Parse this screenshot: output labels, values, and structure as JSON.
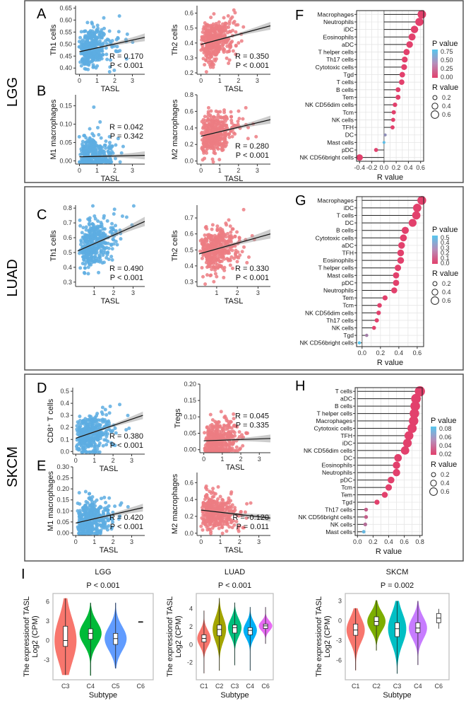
{
  "side_labels": [
    "LGG",
    "LUAD",
    "SKCM"
  ],
  "colors": {
    "blue_points": "#5DADE2",
    "red_points": "#EC7C82",
    "p_low": "#E2406C",
    "p_high": "#56C6EE",
    "label_pink": "#E8437A",
    "label_blue": "#3B3FB0"
  },
  "chart_data": [
    {
      "id": "A",
      "type": "scatter",
      "panel_label": "A",
      "xlabel": "TASL",
      "ylabel": "Th1 cells",
      "color": "#5DADE2",
      "xticks": [
        0,
        1,
        2,
        3
      ],
      "xlim": [
        -0.1,
        3.7
      ],
      "yticks": [
        0.4,
        0.45,
        0.5,
        0.55,
        0.6,
        0.65
      ],
      "ytick_labels": [
        "0.40",
        "0.45",
        "0.50",
        "0.55",
        "0.60",
        "0.65"
      ],
      "ylim": [
        0.38,
        0.66
      ],
      "fit_line": [
        [
          0,
          0.468
        ],
        [
          3.7,
          0.528
        ]
      ],
      "R": "R = 0.170",
      "P": "P < 0.001"
    },
    {
      "id": "A2",
      "type": "scatter",
      "panel_label": "",
      "xlabel": "TASL",
      "ylabel": "Th2 cells",
      "color": "#EC7C82",
      "xticks": [
        0,
        1,
        2,
        3
      ],
      "xlim": [
        -0.1,
        3.7
      ],
      "yticks": [
        0.2,
        0.3,
        0.4,
        0.5,
        0.6
      ],
      "ytick_labels": [
        "0.2",
        "0.3",
        "0.4",
        "0.5",
        "0.6"
      ],
      "ylim": [
        0.2,
        0.65
      ],
      "fit_line": [
        [
          0,
          0.39
        ],
        [
          3.7,
          0.515
        ]
      ],
      "R": "R = 0.350",
      "P": "P < 0.001"
    },
    {
      "id": "B",
      "type": "scatter",
      "panel_label": "B",
      "xlabel": "TASL",
      "ylabel": "M1 macrophages",
      "color": "#5DADE2",
      "xticks": [
        0,
        1,
        2,
        3
      ],
      "xlim": [
        -0.1,
        3.7
      ],
      "yticks": [
        0,
        0.05,
        0.1,
        0.15
      ],
      "ytick_labels": [
        "0.00",
        "0.05",
        "0.10",
        "0.15"
      ],
      "ylim": [
        -0.005,
        0.18
      ],
      "fit_line": [
        [
          0,
          0.011
        ],
        [
          3.7,
          0.015
        ]
      ],
      "R": "R = 0.042",
      "P": "P = 0.342"
    },
    {
      "id": "B2",
      "type": "scatter",
      "panel_label": "",
      "xlabel": "TASL",
      "ylabel": "M2 macrophages",
      "color": "#EC7C82",
      "xticks": [
        0,
        1,
        2,
        3
      ],
      "xlim": [
        -0.1,
        3.7
      ],
      "yticks": [
        0,
        0.2,
        0.4,
        0.6,
        0.8
      ],
      "ytick_labels": [
        "0.0",
        "0.2",
        "0.4",
        "0.6",
        "0.8"
      ],
      "ylim": [
        -0.02,
        0.8
      ],
      "fit_line": [
        [
          0,
          0.3
        ],
        [
          3.7,
          0.5
        ]
      ],
      "R": "R = 0.280",
      "P": "P < 0.001"
    },
    {
      "id": "C",
      "type": "scatter",
      "panel_label": "C",
      "xlabel": "TASL",
      "ylabel": "Th1 cells",
      "color": "#5DADE2",
      "xticks": [
        1,
        2,
        3
      ],
      "xlim": [
        0.15,
        3.6
      ],
      "yticks": [
        0.3,
        0.4,
        0.5,
        0.6,
        0.7,
        0.8
      ],
      "ytick_labels": [
        "0.3",
        "0.4",
        "0.5",
        "0.6",
        "0.7",
        "0.8"
      ],
      "ylim": [
        0.28,
        0.82
      ],
      "fit_line": [
        [
          0.15,
          0.51
        ],
        [
          3.6,
          0.71
        ]
      ],
      "R": "R = 0.490",
      "P": "P < 0.001"
    },
    {
      "id": "C2",
      "type": "scatter",
      "panel_label": "",
      "xlabel": "TASL",
      "ylabel": "Th2 cells",
      "color": "#EC7C82",
      "xticks": [
        1,
        2,
        3
      ],
      "xlim": [
        0.15,
        3.6
      ],
      "yticks": [
        0.3,
        0.4,
        0.5,
        0.6,
        0.7
      ],
      "ytick_labels": [
        "0.3",
        "0.4",
        "0.5",
        "0.6",
        "0.7"
      ],
      "ylim": [
        0.28,
        0.78
      ],
      "fit_line": [
        [
          0.15,
          0.475
        ],
        [
          3.6,
          0.6
        ]
      ],
      "R": "R = 0.330",
      "P": "P < 0.001"
    },
    {
      "id": "D",
      "type": "scatter",
      "panel_label": "D",
      "xlabel": "TASL",
      "ylabel": "CD8⁺ T cells",
      "color": "#5DADE2",
      "xticks": [
        0,
        1,
        2,
        3
      ],
      "xlim": [
        -0.05,
        3.7
      ],
      "yticks": [
        0,
        0.1,
        0.2,
        0.3,
        0.4,
        0.5
      ],
      "ytick_labels": [
        "0.0",
        "0.1",
        "0.2",
        "0.3",
        "0.4",
        "0.5"
      ],
      "ylim": [
        -0.01,
        0.53
      ],
      "fit_line": [
        [
          0,
          0.11
        ],
        [
          3.6,
          0.3
        ]
      ],
      "R": "R = 0.380",
      "P": "P < 0.001"
    },
    {
      "id": "D2",
      "type": "scatter",
      "panel_label": "",
      "xlabel": "TASL",
      "ylabel": "Tregs",
      "color": "#EC7C82",
      "xticks": [
        0,
        1,
        2,
        3
      ],
      "xlim": [
        -0.1,
        3.6
      ],
      "yticks": [
        0,
        0.05,
        0.1,
        0.15,
        0.2
      ],
      "ytick_labels": [
        "0.00",
        "0.05",
        "0.10",
        "0.15",
        "0.20"
      ],
      "ylim": [
        -0.005,
        0.2
      ],
      "fit_line": [
        [
          0,
          0.027
        ],
        [
          3.6,
          0.034
        ]
      ],
      "R": "R = 0.045",
      "P": "P = 0.335"
    },
    {
      "id": "E",
      "type": "scatter",
      "panel_label": "E",
      "xlabel": "TASL",
      "ylabel": "M1 macrophages",
      "color": "#5DADE2",
      "xticks": [
        0,
        1,
        2,
        3
      ],
      "xlim": [
        -0.05,
        3.7
      ],
      "yticks": [
        0,
        0.05,
        0.1,
        0.15,
        0.2,
        0.25,
        0.3
      ],
      "ytick_labels": [
        "0.00",
        "0.05",
        "0.10",
        "0.15",
        "0.20",
        "0.25",
        "0.30"
      ],
      "ylim": [
        -0.005,
        0.3
      ],
      "fit_line": [
        [
          0,
          0.045
        ],
        [
          3.6,
          0.115
        ]
      ],
      "R": "R = 0.420",
      "P": "P < 0.001"
    },
    {
      "id": "E2",
      "type": "scatter",
      "panel_label": "",
      "xlabel": "TASL",
      "ylabel": "M2 macrophages",
      "color": "#EC7C82",
      "xticks": [
        0,
        1,
        2,
        3
      ],
      "xlim": [
        -0.1,
        3.6
      ],
      "yticks": [
        0,
        0.2,
        0.4,
        0.6
      ],
      "ytick_labels": [
        "0.0",
        "0.2",
        "0.4",
        "0.6"
      ],
      "ylim": [
        -0.01,
        0.72
      ],
      "fit_line": [
        [
          0,
          0.275
        ],
        [
          3.6,
          0.18
        ]
      ],
      "R": "R = -0.120",
      "P": "P = 0.011"
    },
    {
      "id": "F",
      "type": "lollipop",
      "panel_label": "F",
      "xlabel": "R value",
      "xlim": [
        -0.45,
        0.65
      ],
      "xticks": [
        -0.4,
        -0.2,
        0,
        0.2,
        0.4,
        0.6
      ],
      "xtick_labels": [
        "-0.4",
        "-0.2",
        "0.0",
        "0.2",
        "0.4",
        "0.6"
      ],
      "legend": {
        "p_title": "P value",
        "p_ticks": [
          "0.75",
          "0.50",
          "0.25",
          "0.00"
        ],
        "p_max": 0.85,
        "r_title": "R value",
        "r_ticks": [
          "0.2",
          "0.4",
          "0.6"
        ]
      },
      "cells": [
        "Macrophages",
        "Neutrophils",
        "iDC",
        "Eosinophils",
        "aDC",
        "T helper cells",
        "Th17 cells",
        "Cytotoxic cells",
        "Tgd",
        "T cells",
        "B cells",
        "Tem",
        "NK CD56dim cells",
        "Tcm",
        "NK cells",
        "TFH",
        "DC",
        "Mast cells",
        "pDC",
        "NK CD56bright cells"
      ],
      "r": [
        0.62,
        0.58,
        0.5,
        0.46,
        0.42,
        0.37,
        0.34,
        0.33,
        0.3,
        0.29,
        0.23,
        0.23,
        0.18,
        0.16,
        0.15,
        0.14,
        0.02,
        0.0,
        -0.13,
        -0.4
      ],
      "p": [
        0,
        0,
        0,
        0,
        0,
        0,
        0,
        0,
        0,
        0,
        0,
        0,
        0,
        0,
        0,
        0,
        0.5,
        0.8,
        0.01,
        0
      ],
      "label_colors": {
        "Macrophages": "#E8437A",
        "pDC": "#3B3FB0",
        "NK CD56bright cells": "#3B3FB0"
      }
    },
    {
      "id": "G",
      "type": "lollipop",
      "panel_label": "G",
      "xlabel": "R value",
      "xlim": [
        -0.06,
        0.67
      ],
      "xticks": [
        0,
        0.2,
        0.4,
        0.6
      ],
      "xtick_labels": [
        "0.0",
        "0.2",
        "0.4",
        "0.6"
      ],
      "legend": {
        "p_title": "P value",
        "p_ticks": [
          "0.5",
          "0.4",
          "0.3",
          "0.2",
          "0.1",
          "0.0"
        ],
        "p_max": 0.55,
        "r_title": "R value",
        "r_ticks": [
          "0.2",
          "0.4",
          "0.6"
        ]
      },
      "cells": [
        "Macrophages",
        "iDC",
        "T cells",
        "DC",
        "B cells",
        "Cytotoxic cells",
        "aDC",
        "TFH",
        "Eosinophils",
        "T helper cells",
        "Mast cells",
        "pDC",
        "Neutrophils",
        "Tem",
        "Tcm",
        "NK CD56dim cells",
        "Th17 cells",
        "NK cells",
        "Tgd",
        "NK CD56bright cells"
      ],
      "r": [
        0.65,
        0.6,
        0.59,
        0.55,
        0.47,
        0.45,
        0.43,
        0.42,
        0.42,
        0.39,
        0.37,
        0.37,
        0.35,
        0.25,
        0.19,
        0.18,
        0.16,
        0.13,
        0.05,
        -0.03
      ],
      "p": [
        0,
        0,
        0,
        0,
        0,
        0,
        0,
        0,
        0,
        0,
        0,
        0,
        0,
        0,
        0,
        0,
        0,
        0,
        0.25,
        0.55
      ],
      "label_colors": {
        "Macrophages": "#E8437A"
      }
    },
    {
      "id": "H",
      "type": "lollipop",
      "panel_label": "H",
      "xlabel": "R value",
      "xlim": [
        -0.03,
        0.83
      ],
      "xticks": [
        0,
        0.2,
        0.4,
        0.6,
        0.8
      ],
      "xtick_labels": [
        "0.0",
        "0.2",
        "0.4",
        "0.6",
        "0.8"
      ],
      "legend": {
        "p_title": "P value",
        "p_ticks": [
          "0.08",
          "0.06",
          "0.04",
          "0.02"
        ],
        "p_max": 0.09,
        "r_title": "R value",
        "r_ticks": [
          "0.2",
          "0.4",
          "0.6"
        ]
      },
      "cells": [
        "T cells",
        "aDC",
        "B cells",
        "T helper cells",
        "Macrophages",
        "Cytotoxic cells",
        "TFH",
        "iDC",
        "NK CD56dim cells",
        "DC",
        "Eosinophils",
        "Neutrophils",
        "pDC",
        "Tcm",
        "Tem",
        "Tgd",
        "Th17 cells",
        "NK CD56bright cells",
        "NK cells",
        "Mast cells"
      ],
      "r": [
        0.8,
        0.75,
        0.74,
        0.73,
        0.72,
        0.7,
        0.66,
        0.64,
        0.61,
        0.52,
        0.5,
        0.5,
        0.43,
        0.4,
        0.35,
        0.25,
        0.11,
        0.11,
        0.1,
        0.08
      ],
      "p": [
        0,
        0,
        0,
        0,
        0,
        0,
        0,
        0,
        0,
        0,
        0,
        0,
        0,
        0,
        0,
        0,
        0.02,
        0.02,
        0.03,
        0.08
      ],
      "label_colors": {
        "T cells": "#E8437A"
      }
    },
    {
      "id": "I1",
      "type": "violin",
      "panel_label": "I",
      "title": "LGG",
      "subtitle": "P < 0.001",
      "xlabel": "Subtype",
      "ylabel": [
        "The expressionof TASL",
        "Log2 (CPM)"
      ],
      "ylim": [
        -5.6,
        6.8
      ],
      "yticks": [
        -3,
        0,
        3,
        6
      ],
      "ytick_labels": [
        "-3",
        "0",
        "3",
        "6"
      ],
      "groups": [
        {
          "name": "C3",
          "color": "#F8766D",
          "median": 0,
          "q1": -0.9,
          "q3": 2.2,
          "min": -5.3,
          "max": 6.5
        },
        {
          "name": "C4",
          "color": "#00BA38",
          "median": 1.1,
          "q1": 0.2,
          "q3": 1.8,
          "min": -5.4,
          "max": 5.8
        },
        {
          "name": "C5",
          "color": "#619CFF",
          "median": 0.3,
          "q1": -0.6,
          "q3": 1.1,
          "min": -4.3,
          "max": 5.8
        },
        {
          "name": "C6",
          "color": "#000000",
          "median": 2.9,
          "q1": 2.9,
          "q3": 2.9,
          "min": 2.9,
          "max": 2.9,
          "no_violin": true
        }
      ]
    },
    {
      "id": "I2",
      "type": "violin",
      "panel_label": "",
      "title": "LUAD",
      "subtitle": "P < 0.001",
      "xlabel": "Subtype",
      "ylabel": [
        "The expressionof TASL",
        "Log2 (CPM)"
      ],
      "ylim": [
        -3.6,
        5.4
      ],
      "yticks": [
        -2,
        0,
        2,
        4
      ],
      "ytick_labels": [
        "-2",
        "0",
        "2",
        "4"
      ],
      "groups": [
        {
          "name": "C1",
          "color": "#F8766D",
          "median": 0.7,
          "q1": 0.3,
          "q3": 1.1,
          "min": -3.2,
          "max": 3.8
        },
        {
          "name": "C2",
          "color": "#A3A500",
          "median": 1.7,
          "q1": 1.0,
          "q3": 2.2,
          "min": -2.9,
          "max": 5.2
        },
        {
          "name": "C3",
          "color": "#00BF7D",
          "median": 1.9,
          "q1": 1.3,
          "q3": 2.2,
          "min": -2.3,
          "max": 4.7
        },
        {
          "name": "C4",
          "color": "#00B0F6",
          "median": 1.6,
          "q1": 1.1,
          "q3": 1.9,
          "min": -2.9,
          "max": 4.2
        },
        {
          "name": "C6",
          "color": "#E76BF3",
          "median": 2.1,
          "q1": 1.8,
          "q3": 2.3,
          "min": 0.1,
          "max": 4.2
        }
      ]
    },
    {
      "id": "I3",
      "type": "violin",
      "panel_label": "",
      "title": "SKCM",
      "subtitle": "P = 0.002",
      "xlabel": "Subtype",
      "ylabel": [
        "The expressionof TASL",
        "Log2 (CPM)"
      ],
      "ylim": [
        -8.5,
        3.7
      ],
      "yticks": [
        -6,
        -3,
        0,
        3
      ],
      "ytick_labels": [
        "-6",
        "-3",
        "0",
        "3"
      ],
      "groups": [
        {
          "name": "C1",
          "color": "#F8766D",
          "median": -1.4,
          "q1": -2.2,
          "q3": -0.5,
          "min": -7.5,
          "max": 1.9
        },
        {
          "name": "C2",
          "color": "#7CAE00",
          "median": -0.1,
          "q1": -0.7,
          "q3": 0.6,
          "min": -4.5,
          "max": 3.1
        },
        {
          "name": "C3",
          "color": "#00BFC4",
          "median": -1.2,
          "q1": -2.4,
          "q3": -0.3,
          "min": -8.0,
          "max": 3.0
        },
        {
          "name": "C4",
          "color": "#C77CFF",
          "median": -1.1,
          "q1": -1.8,
          "q3": -0.3,
          "min": -6.7,
          "max": 3.0
        },
        {
          "name": "C6",
          "color": "#000000",
          "median": 0.4,
          "q1": -0.3,
          "q3": 1.1,
          "min": -1.2,
          "max": 1.8,
          "no_violin": true
        }
      ]
    }
  ]
}
